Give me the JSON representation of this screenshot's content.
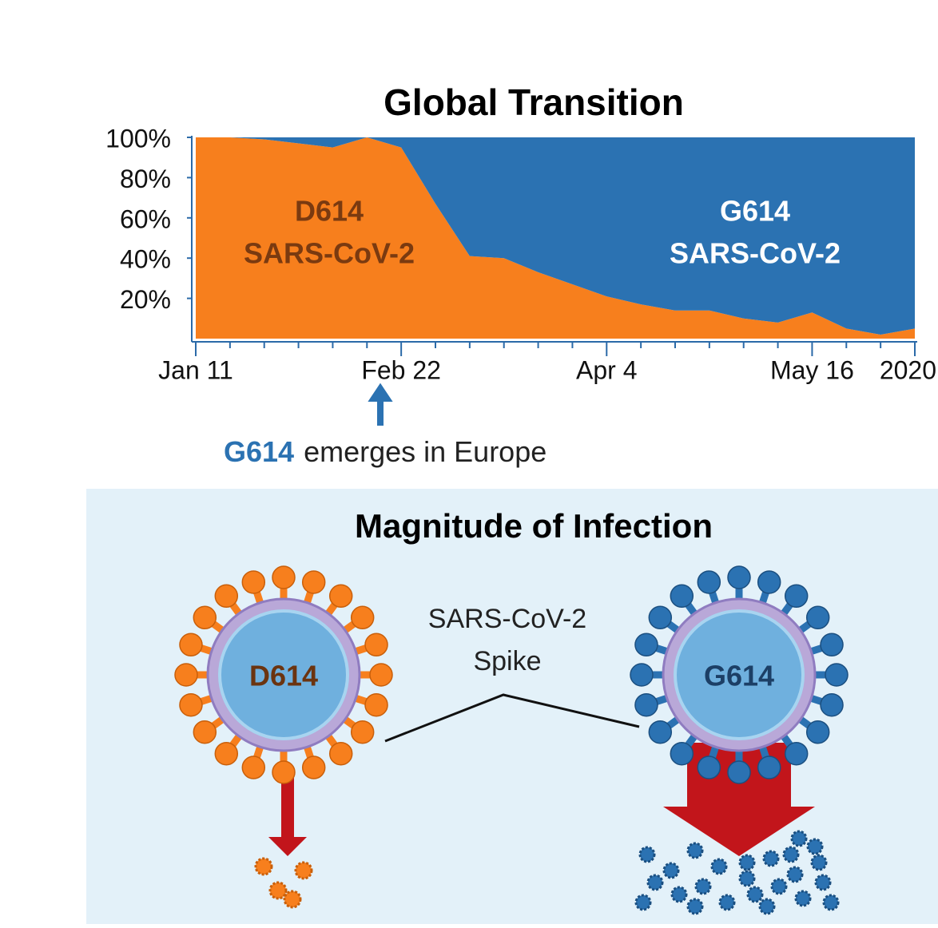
{
  "chart_data": {
    "type": "area",
    "stacked": true,
    "title": "Global Transition",
    "categories": [
      "Jan 11",
      null,
      null,
      null,
      null,
      null,
      "Feb 22",
      null,
      null,
      null,
      null,
      null,
      "Apr 4",
      null,
      null,
      null,
      null,
      null,
      "May 16",
      null,
      null,
      "2020"
    ],
    "series": [
      {
        "name": "D614",
        "label": "SARS-CoV-2",
        "color": "#f77f1d",
        "values": [
          100,
          100,
          99,
          97,
          95,
          100,
          95,
          67,
          41,
          40,
          33,
          27,
          21,
          17,
          14,
          14,
          10,
          8,
          13,
          5,
          2,
          5
        ]
      },
      {
        "name": "G614",
        "label": "SARS-CoV-2",
        "color": "#2b72b2",
        "values": [
          0,
          0,
          1,
          3,
          5,
          0,
          5,
          33,
          59,
          60,
          67,
          73,
          79,
          83,
          86,
          86,
          90,
          92,
          87,
          95,
          98,
          95
        ]
      }
    ],
    "ylim": [
      0,
      100
    ],
    "yticks": [
      {
        "value": 20,
        "label": "20%"
      },
      {
        "value": 40,
        "label": "40%"
      },
      {
        "value": 60,
        "label": "60%"
      },
      {
        "value": 80,
        "label": "80%"
      },
      {
        "value": 100,
        "label": "100%"
      }
    ],
    "annotation": {
      "highlight": "G614",
      "text": "emerges in Europe"
    }
  },
  "diagram": {
    "title": "Magnitude of Infection",
    "spike_label": [
      "SARS-CoV-2",
      "Spike"
    ],
    "left_virus": "D614",
    "right_virus": "G614"
  }
}
